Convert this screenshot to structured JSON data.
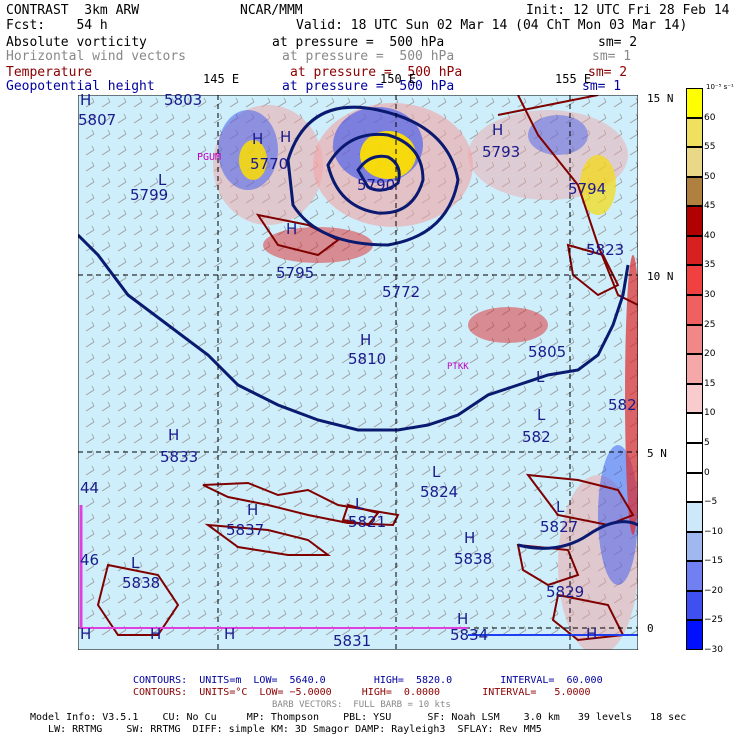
{
  "header": {
    "model": "CONTRAST  3km ARW",
    "org": "NCAR/MMM",
    "init": "Init: 12 UTC Fri 28 Feb 14",
    "fcst": "Fcst:    54 h",
    "valid": "Valid: 18 UTC Sun 02 Mar 14 (04 ChT Mon 03 Mar 14)"
  },
  "fields": [
    {
      "name": "Absolute vorticity",
      "level": "at pressure =  500 hPa",
      "sm": "sm= 2",
      "color": "#000000"
    },
    {
      "name": "Horizontal wind vectors",
      "level": "at pressure =  500 hPa",
      "sm": "sm= 1",
      "color": "#888888"
    },
    {
      "name": "Temperature",
      "level": "at pressure =  500 hPa",
      "sm": "sm= 2",
      "color": "#8b0000"
    },
    {
      "name": "Geopotential height",
      "level": "at pressure =  500 hPa",
      "sm": "sm= 1",
      "color": "#1a1a8c"
    }
  ],
  "map": {
    "lon_labels": [
      "145 E",
      "150 E",
      "155 E"
    ],
    "lat_labels": [
      "15 N",
      "10 N",
      "5 N",
      "0"
    ],
    "stations": [
      "PGUM",
      "PTKK"
    ],
    "height_labels": [
      {
        "t": "H"
      },
      {
        "t": "5803"
      },
      {
        "t": "5807"
      },
      {
        "t": "H"
      },
      {
        "t": "5770"
      },
      {
        "t": "L"
      },
      {
        "t": "5799"
      },
      {
        "t": "H"
      },
      {
        "t": "5790"
      },
      {
        "t": "H"
      },
      {
        "t": "5793"
      },
      {
        "t": "5794"
      },
      {
        "t": "5823"
      },
      {
        "t": "H"
      },
      {
        "t": "5795"
      },
      {
        "t": "5772"
      },
      {
        "t": "H"
      },
      {
        "t": "5810"
      },
      {
        "t": "5805"
      },
      {
        "t": "L"
      },
      {
        "t": "582"
      },
      {
        "t": "L"
      },
      {
        "t": "582"
      },
      {
        "t": "H"
      },
      {
        "t": "5833"
      },
      {
        "t": "L"
      },
      {
        "t": "5824"
      },
      {
        "t": "44"
      },
      {
        "t": "H"
      },
      {
        "t": "5837"
      },
      {
        "t": "L"
      },
      {
        "t": "5821"
      },
      {
        "t": "L"
      },
      {
        "t": "5827"
      },
      {
        "t": "46"
      },
      {
        "t": "L"
      },
      {
        "t": "5838"
      },
      {
        "t": "H"
      },
      {
        "t": "5838"
      },
      {
        "t": "5829"
      },
      {
        "t": "H"
      },
      {
        "t": "H"
      },
      {
        "t": "H"
      },
      {
        "t": "5831"
      },
      {
        "t": "H"
      },
      {
        "t": "5834"
      },
      {
        "t": "H"
      }
    ]
  },
  "colorbar": {
    "unit": "10⁻⁵ s⁻¹",
    "labels": [
      "60",
      "55",
      "50",
      "45",
      "40",
      "35",
      "30",
      "25",
      "20",
      "15",
      "10",
      "5",
      "0",
      "−5",
      "−10",
      "−15",
      "−20",
      "−25",
      "−30"
    ],
    "colors": [
      "#ffff00",
      "#f0e060",
      "#e8d888",
      "#b08040",
      "#b00000",
      "#d82020",
      "#f04040",
      "#f06060",
      "#f08888",
      "#f4a8a8",
      "#f8cccc",
      "#ffffff",
      "#ffffff",
      "#ffffff",
      "#cde8f8",
      "#a0b8f0",
      "#7080f0",
      "#4050f0",
      "#0010ff"
    ]
  },
  "footer": {
    "contours1": "CONTOURS:  UNITS=m  LOW=  5640.0        HIGH=  5820.0        INTERVAL=  60.000",
    "contours2": "CONTOURS:  UNITS=°C  LOW= −5.0000     HIGH=  0.0000       INTERVAL=   5.0000",
    "barb": "BARB VECTORS:  FULL BARB = 10 kts",
    "model1": "Model Info: V3.5.1    CU: No Cu     MP: Thompson    PBL: YSU      SF: Noah LSM    3.0 km   39 levels   18 sec",
    "model2": "   LW: RRTMG    SW: RRTMG  DIFF: simple KM: 3D Smagor DAMP: Rayleigh3  SFLAY: Rev MM5"
  }
}
